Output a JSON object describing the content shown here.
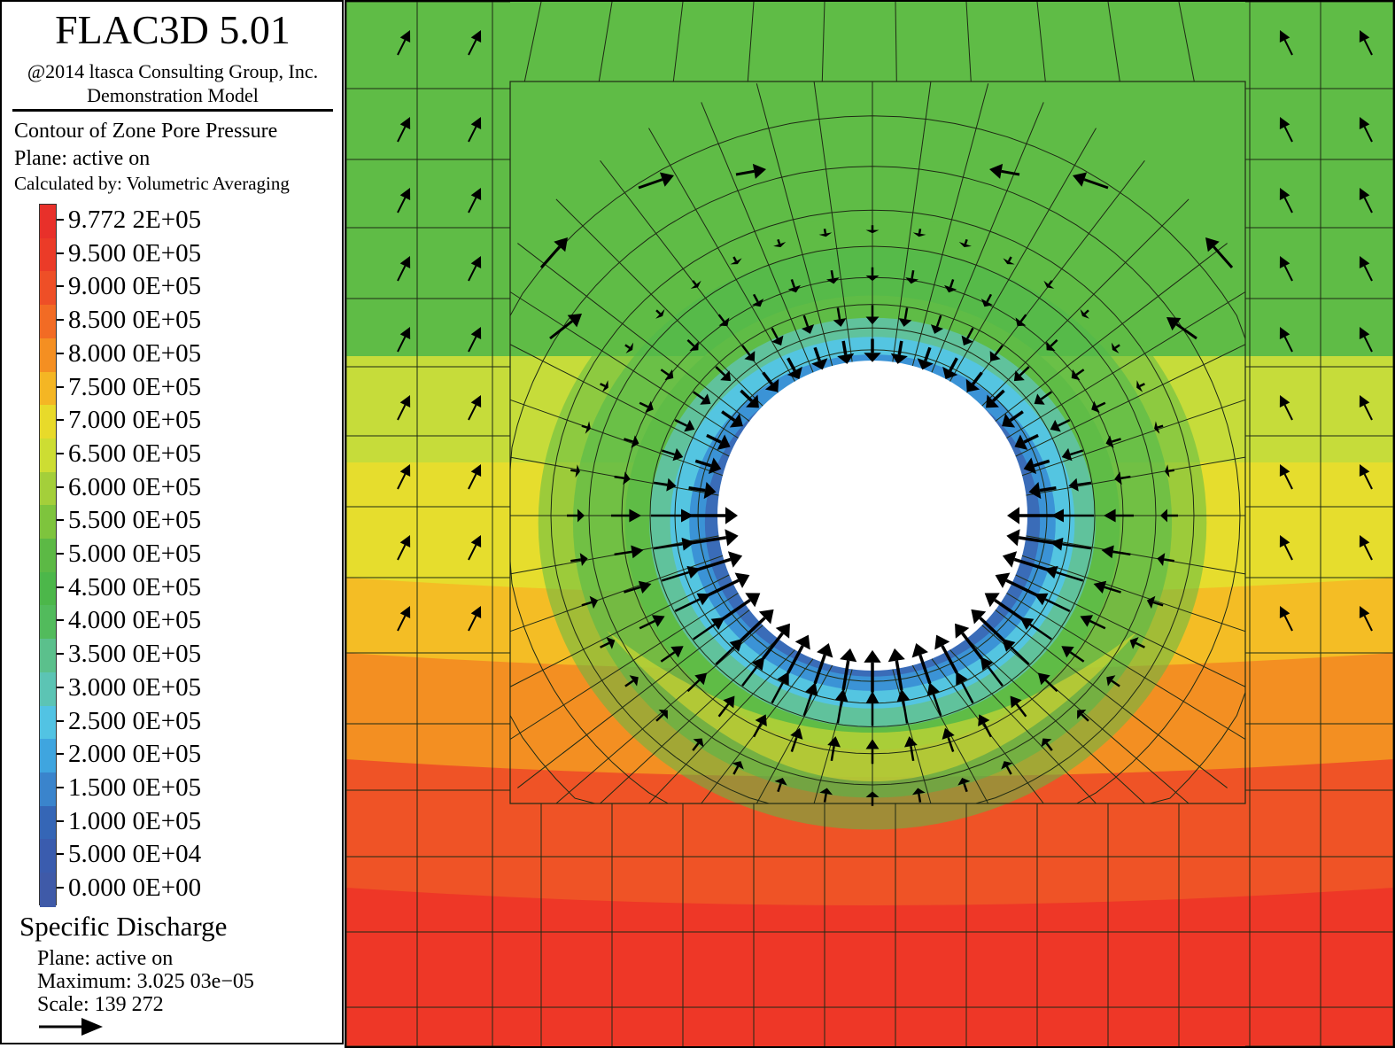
{
  "header": {
    "app_title": "FLAC3D 5.01",
    "copyright": "@2014 ltasca Consulting Group, Inc.",
    "model": "Demonstration Model"
  },
  "contour": {
    "title": "Contour of Zone Pore Pressure",
    "plane": "Plane: active on",
    "calculated_by": "Calculated by: Volumetric Averaging",
    "levels": [
      {
        "label": "9.772 2E+05",
        "color": "#e8302a"
      },
      {
        "label": "9.500 0E+05",
        "color": "#eb3b28"
      },
      {
        "label": "9.000 0E+05",
        "color": "#ee4f27"
      },
      {
        "label": "8.500 0E+05",
        "color": "#f26b24"
      },
      {
        "label": "8.000 0E+05",
        "color": "#f48f22"
      },
      {
        "label": "7.500 0E+05",
        "color": "#f4b624"
      },
      {
        "label": "7.000 0E+05",
        "color": "#e8da2a"
      },
      {
        "label": "6.500 0E+05",
        "color": "#cddd33"
      },
      {
        "label": "6.000 0E+05",
        "color": "#a4cf3a"
      },
      {
        "label": "5.500 0E+05",
        "color": "#7ec43d"
      },
      {
        "label": "5.000 0E+05",
        "color": "#5cb945"
      },
      {
        "label": "4.500 0E+05",
        "color": "#4cb74a"
      },
      {
        "label": "4.000 0E+05",
        "color": "#52bb5c"
      },
      {
        "label": "3.500 0E+05",
        "color": "#5bc08c"
      },
      {
        "label": "3.000 0E+05",
        "color": "#5cc4b4"
      },
      {
        "label": "2.500 0E+05",
        "color": "#52c3e3"
      },
      {
        "label": "2.000 0E+05",
        "color": "#3fa5df"
      },
      {
        "label": "1.500 0E+05",
        "color": "#3a84cc"
      },
      {
        "label": "1.000 0E+05",
        "color": "#3566b6"
      },
      {
        "label": "5.000 0E+04",
        "color": "#3a5cae"
      },
      {
        "label": "0.000 0E+00",
        "color": "#3f5aa8"
      }
    ]
  },
  "discharge": {
    "title": "Specific Discharge",
    "plane": "Plane: active on",
    "maximum": "Maximum: 3.025 03e−05",
    "scale": "Scale: 139 272"
  },
  "colors": {
    "red": "#ee3727",
    "orange_red": "#ef5326",
    "orange": "#f38f22",
    "yellow_orange": "#f4bd25",
    "yellow": "#e6dd2d",
    "yellow_green": "#c6dc3a",
    "green": "#5fbc46",
    "green_mid": "#4fb84c",
    "teal": "#60c29c",
    "cyan": "#54c5e1",
    "blue_light": "#3b93d6",
    "blue": "#3a6cb8",
    "hole": "#ffffff",
    "mesh": "#1e2a14",
    "arrow": "#000000"
  }
}
